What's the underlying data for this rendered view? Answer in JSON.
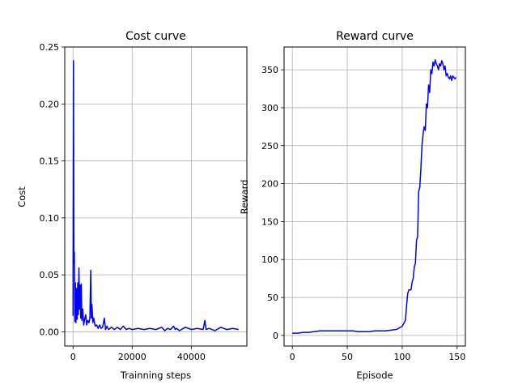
{
  "chart_data": [
    {
      "type": "line",
      "title": "Cost curve",
      "xlabel": "Trainning steps",
      "ylabel": "Cost",
      "xlim": [
        -2800,
        58800
      ],
      "ylim": [
        -0.0125,
        0.25
      ],
      "xticks": [
        0,
        20000,
        40000
      ],
      "yticks": [
        0.0,
        0.05,
        0.1,
        0.15,
        0.2,
        0.25
      ],
      "xtick_labels": [
        "0",
        "20000",
        "40000"
      ],
      "ytick_labels": [
        "0.00",
        "0.05",
        "0.10",
        "0.15",
        "0.20",
        "0.25"
      ],
      "grid": true,
      "line_color": "#0000ff",
      "series": [
        {
          "x": [
            0,
            150,
            300,
            450,
            600,
            800,
            1000,
            1200,
            1400,
            1600,
            1800,
            2000,
            2200,
            2400,
            2600,
            2800,
            3000,
            3300,
            3600,
            4000,
            4300,
            4600,
            5000,
            5400,
            5700,
            6000,
            6200,
            6400,
            6700,
            7000,
            7500,
            8000,
            8500,
            9000,
            9500,
            10000,
            10600,
            11000,
            11500,
            12000,
            13000,
            14000,
            15000,
            16000,
            17000,
            18000,
            19000,
            20000,
            22000,
            24000,
            26000,
            28000,
            30000,
            31000,
            32000,
            33000,
            34000,
            34600,
            35000,
            36000,
            38000,
            40000,
            42000,
            44000,
            44600,
            45000,
            46000,
            48000,
            50000,
            52000,
            54000,
            56000
          ],
          "y": [
            0.014,
            0.238,
            0.06,
            0.07,
            0.009,
            0.043,
            0.008,
            0.038,
            0.011,
            0.043,
            0.015,
            0.056,
            0.02,
            0.041,
            0.012,
            0.042,
            0.01,
            0.02,
            0.006,
            0.012,
            0.015,
            0.006,
            0.01,
            0.008,
            0.012,
            0.054,
            0.012,
            0.024,
            0.008,
            0.012,
            0.005,
            0.006,
            0.003,
            0.006,
            0.003,
            0.004,
            0.012,
            0.002,
            0.005,
            0.002,
            0.004,
            0.002,
            0.004,
            0.002,
            0.005,
            0.002,
            0.003,
            0.002,
            0.003,
            0.002,
            0.003,
            0.002,
            0.004,
            0.001,
            0.003,
            0.002,
            0.005,
            0.002,
            0.003,
            0.001,
            0.004,
            0.002,
            0.003,
            0.002,
            0.01,
            0.002,
            0.003,
            0.001,
            0.004,
            0.002,
            0.003,
            0.002
          ]
        }
      ]
    },
    {
      "type": "line",
      "title": "Reward curve",
      "xlabel": "Episode",
      "ylabel": "Reward",
      "xlim": [
        -7.5,
        157.5
      ],
      "ylim": [
        -14,
        380
      ],
      "xticks": [
        0,
        50,
        100,
        150
      ],
      "yticks": [
        0,
        50,
        100,
        150,
        200,
        250,
        300,
        350
      ],
      "xtick_labels": [
        "0",
        "50",
        "100",
        "150"
      ],
      "ytick_labels": [
        "0",
        "50",
        "100",
        "150",
        "200",
        "250",
        "300",
        "350"
      ],
      "grid": true,
      "line_color": "#0000ff",
      "series": [
        {
          "x": [
            0,
            5,
            10,
            15,
            20,
            25,
            30,
            35,
            40,
            45,
            50,
            55,
            60,
            65,
            70,
            75,
            80,
            85,
            90,
            95,
            100,
            103,
            104,
            105,
            106,
            107,
            108,
            109,
            110,
            111,
            112,
            113,
            114,
            115,
            116,
            117,
            118,
            119,
            120,
            121,
            122,
            123,
            124,
            125,
            126,
            127,
            128,
            129,
            130,
            131,
            132,
            133,
            134,
            135,
            136,
            137,
            138,
            139,
            140,
            141,
            142,
            143,
            144,
            145,
            146,
            147,
            148,
            149
          ],
          "y": [
            3,
            3,
            4,
            4,
            5,
            6,
            6,
            6,
            6,
            6,
            6,
            6,
            5,
            5,
            5,
            6,
            6,
            6,
            7,
            8,
            12,
            20,
            40,
            55,
            60,
            60,
            60,
            70,
            75,
            90,
            95,
            125,
            130,
            190,
            195,
            220,
            250,
            265,
            275,
            270,
            305,
            300,
            330,
            320,
            350,
            345,
            360,
            355,
            363,
            358,
            355,
            350,
            358,
            355,
            362,
            358,
            350,
            355,
            342,
            345,
            340,
            338,
            342,
            336,
            342,
            340,
            338,
            340
          ]
        }
      ]
    }
  ]
}
